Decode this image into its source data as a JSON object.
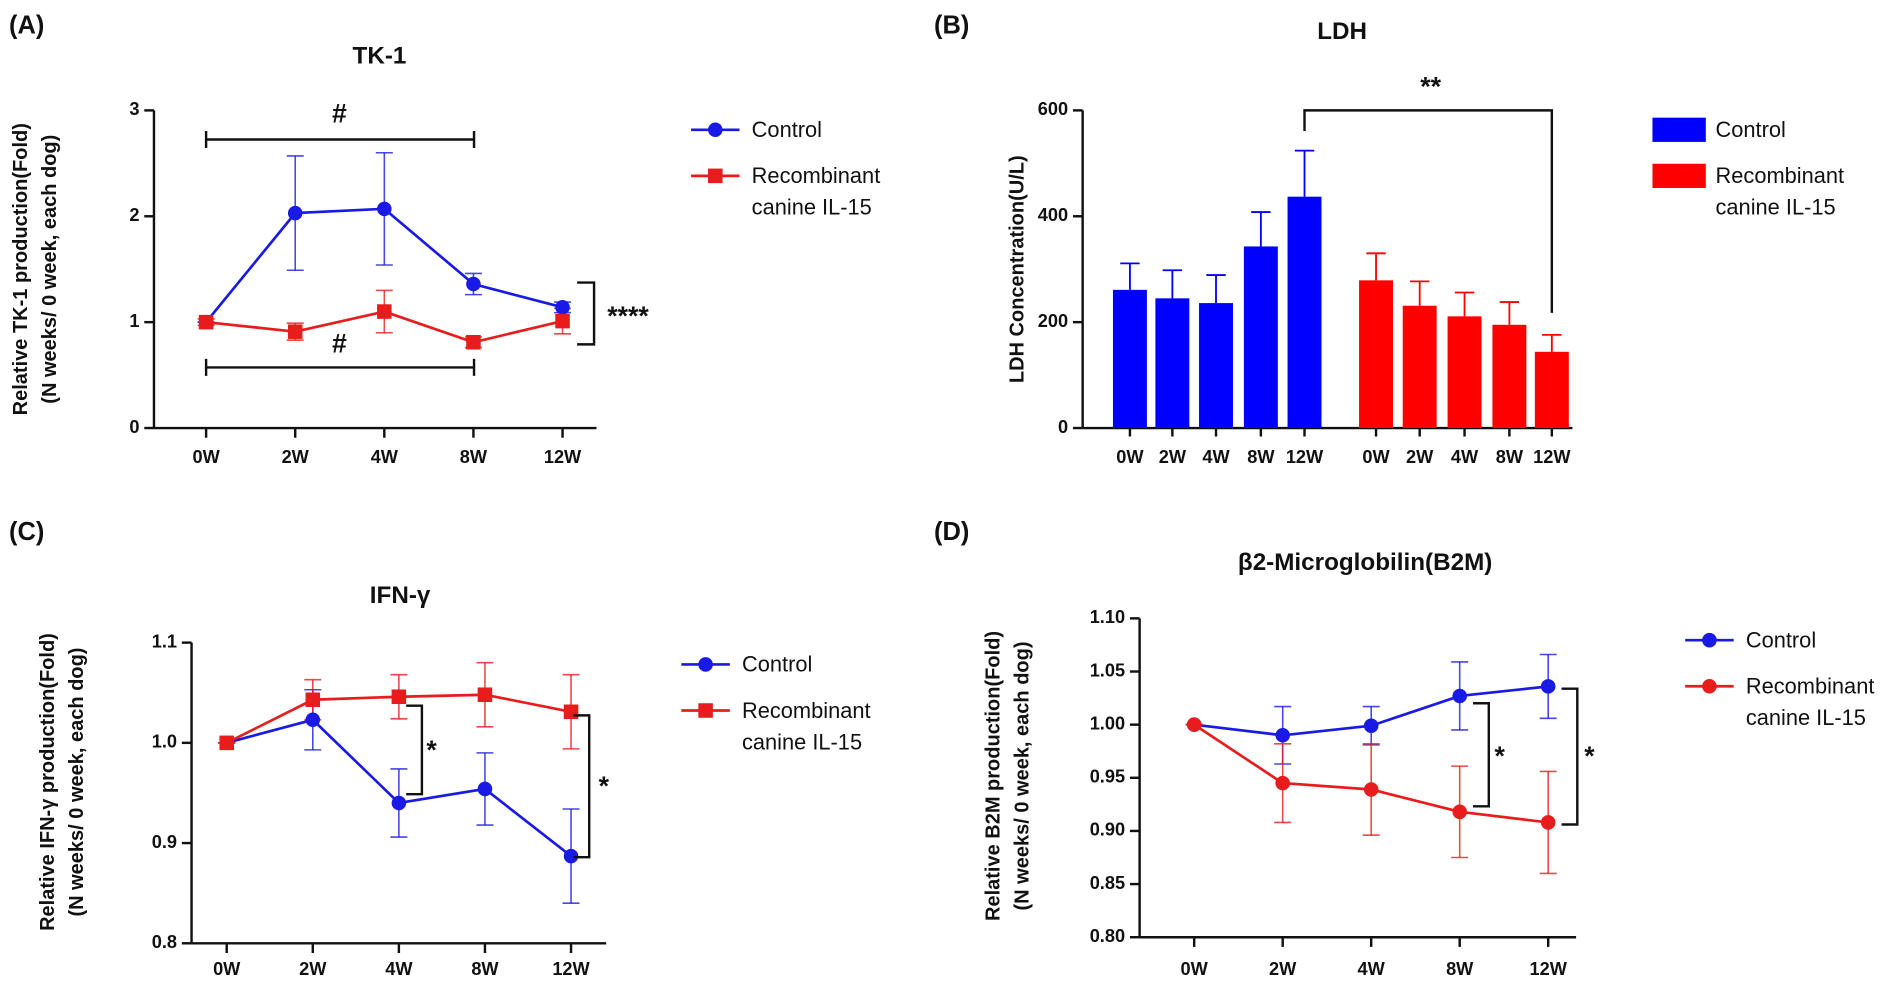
{
  "chart_data": [
    {
      "type": "line",
      "panel_label": "(A)",
      "title": "TK-1",
      "y_label": [
        "Relative TK-1 production(Fold)",
        "(N weeks/ 0 week, each dog)"
      ],
      "categories": [
        "0W",
        "2W",
        "4W",
        "8W",
        "12W"
      ],
      "series": [
        {
          "name": "Control",
          "color": "#1a1ae6",
          "marker": "circle",
          "values": [
            1.0,
            2.03,
            2.07,
            1.36,
            1.14
          ],
          "errors": [
            0,
            0.54,
            0.53,
            0.1,
            0.05
          ]
        },
        {
          "name": "Recombinant canine IL-15",
          "color": "#e81c1c",
          "marker": "square",
          "values": [
            1.0,
            0.91,
            1.1,
            0.81,
            1.01
          ],
          "errors": [
            0.03,
            0.08,
            0.2,
            0.05,
            0.12
          ]
        }
      ],
      "ylim": [
        0,
        3
      ],
      "yticks": [
        0,
        1,
        2,
        3
      ],
      "annotations": [
        "#",
        "#",
        "****"
      ]
    },
    {
      "type": "bar",
      "panel_label": "(B)",
      "title": "LDH",
      "y_label": "LDH Concentration(U/L)",
      "categories": [
        "0W",
        "2W",
        "4W",
        "8W",
        "12W"
      ],
      "series": [
        {
          "name": "Control",
          "color": "#0000ff",
          "values": [
            261,
            245,
            236,
            343,
            437
          ],
          "errors": [
            50,
            53,
            53,
            65,
            87
          ]
        },
        {
          "name": "Recombinant canine IL-15",
          "color": "#ff0000",
          "values": [
            279,
            231,
            211,
            195,
            144
          ],
          "errors": [
            51,
            46,
            45,
            43,
            32
          ]
        }
      ],
      "ylim": [
        0,
        600
      ],
      "yticks": [
        0,
        200,
        400,
        600
      ],
      "annotations": [
        "**"
      ]
    },
    {
      "type": "line",
      "panel_label": "(C)",
      "title": "IFN-γ",
      "y_label": [
        "Relative IFN-γ production(Fold)",
        "(N weeks/ 0 week, each dog)"
      ],
      "categories": [
        "0W",
        "2W",
        "4W",
        "8W",
        "12W"
      ],
      "series": [
        {
          "name": "Control",
          "color": "#1a1ae6",
          "marker": "circle",
          "values": [
            1.0,
            1.023,
            0.94,
            0.954,
            0.887
          ],
          "errors": [
            0,
            0.03,
            0.034,
            0.036,
            0.047
          ]
        },
        {
          "name": "Recombinant canine IL-15",
          "color": "#e81c1c",
          "marker": "square",
          "values": [
            1.0,
            1.043,
            1.046,
            1.048,
            1.031
          ],
          "errors": [
            0,
            0.02,
            0.022,
            0.032,
            0.037
          ]
        }
      ],
      "ylim": [
        0.8,
        1.1
      ],
      "yticks": [
        0.8,
        0.9,
        {
          "value": 1.0,
          "label": "1.0"
        },
        1.1
      ],
      "annotations": [
        "*",
        "*"
      ]
    },
    {
      "type": "line",
      "panel_label": "(D)",
      "title": "β2-Microglobilin(B2M)",
      "y_label": [
        "Relative B2M production(Fold)",
        "(N weeks/ 0 week, each dog)"
      ],
      "categories": [
        "0W",
        "2W",
        "4W",
        "8W",
        "12W"
      ],
      "series": [
        {
          "name": "Control",
          "color": "#1a1ae6",
          "marker": "circle",
          "values": [
            1.0,
            0.99,
            0.999,
            1.027,
            1.036
          ],
          "errors": [
            0,
            0.027,
            0.018,
            0.032,
            0.03
          ]
        },
        {
          "name": "Recombinant canine IL-15",
          "color": "#e81c1c",
          "marker": "circle",
          "values": [
            1.0,
            0.945,
            0.939,
            0.918,
            0.908
          ],
          "errors": [
            0,
            0.037,
            0.043,
            0.043,
            0.048
          ]
        }
      ],
      "ylim": [
        0.8,
        1.1
      ],
      "yticks": [
        {
          "value": 0.8,
          "label": "0.80"
        },
        0.85,
        {
          "value": 0.9,
          "label": "0.90"
        },
        0.95,
        {
          "value": 1.0,
          "label": "1.00"
        },
        1.05,
        {
          "value": 1.1,
          "label": "1.10"
        }
      ],
      "annotations": [
        "*",
        "*"
      ]
    }
  ]
}
